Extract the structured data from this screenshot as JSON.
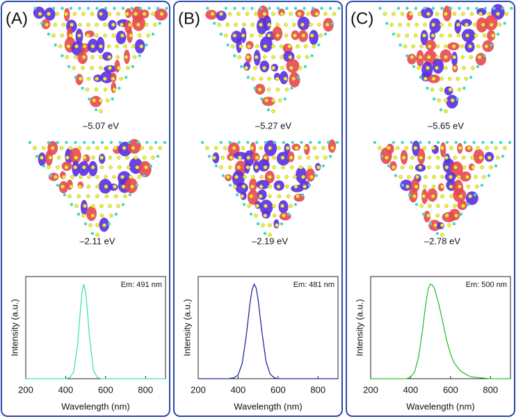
{
  "chart_data": [
    {
      "type": "line",
      "panel": "(A)",
      "annotations": [
        "–5.07 eV",
        "–2.11 eV",
        "Em: 491 nm"
      ],
      "xlabel": "Wavelength (nm)",
      "ylabel": "Intensity (a.u.)",
      "color": "#3fe0b8",
      "x": [
        200,
        300,
        350,
        380,
        400,
        420,
        440,
        460,
        470,
        480,
        490,
        500,
        510,
        520,
        540,
        560,
        580,
        600,
        620,
        650,
        700,
        750,
        800,
        900
      ],
      "values": [
        0,
        0,
        0,
        0,
        0,
        0.01,
        0.07,
        0.37,
        0.63,
        0.88,
        1.0,
        0.92,
        0.69,
        0.42,
        0.08,
        0.01,
        0,
        0,
        0,
        0,
        0,
        0,
        0,
        0
      ],
      "xlim": [
        200,
        900
      ],
      "ylim": [
        0,
        1.08
      ],
      "xticks": [
        200,
        400,
        600,
        800
      ]
    },
    {
      "type": "line",
      "panel": "(B)",
      "annotations": [
        "–5.27 eV",
        "–2.19 eV",
        "Em: 481 nm"
      ],
      "xlabel": "Wavelength (nm)",
      "ylabel": "Intensity (a.u.)",
      "color": "#1c2a9c",
      "x": [
        200,
        300,
        350,
        380,
        400,
        420,
        440,
        460,
        470,
        480,
        490,
        500,
        510,
        520,
        540,
        560,
        580,
        600,
        620,
        650,
        700,
        750,
        800,
        900
      ],
      "values": [
        0,
        0,
        0,
        0.01,
        0.04,
        0.16,
        0.44,
        0.81,
        0.94,
        1.0,
        0.96,
        0.84,
        0.66,
        0.48,
        0.18,
        0.05,
        0.01,
        0,
        0,
        0,
        0,
        0,
        0,
        0
      ],
      "xlim": [
        200,
        900
      ],
      "ylim": [
        0,
        1.08
      ],
      "xticks": [
        200,
        400,
        600,
        800
      ]
    },
    {
      "type": "line",
      "panel": "(C)",
      "annotations": [
        "–5.65 eV",
        "–2.78 eV",
        "Em: 500 nm"
      ],
      "xlabel": "Wavelength (nm)",
      "ylabel": "Intensity (a.u.)",
      "color": "#2fbf35",
      "x": [
        200,
        300,
        350,
        380,
        400,
        420,
        440,
        460,
        470,
        480,
        490,
        500,
        510,
        520,
        540,
        560,
        580,
        600,
        620,
        650,
        700,
        750,
        800,
        900
      ],
      "values": [
        0,
        0,
        0,
        0,
        0.02,
        0.07,
        0.23,
        0.52,
        0.69,
        0.85,
        0.96,
        1.0,
        0.99,
        0.95,
        0.8,
        0.61,
        0.41,
        0.26,
        0.16,
        0.08,
        0.02,
        0.01,
        0,
        0
      ],
      "xlim": [
        200,
        900
      ],
      "ylim": [
        0,
        1.08
      ],
      "xticks": [
        200,
        400,
        600,
        800
      ]
    }
  ]
}
